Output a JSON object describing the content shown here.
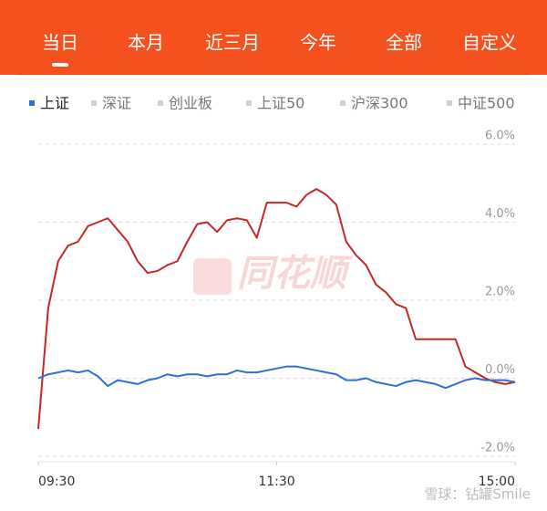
{
  "tabs": [
    "当日",
    "本月",
    "近三月",
    "今年",
    "全部",
    "自定义"
  ],
  "active_tab": 0,
  "chart_data": {
    "type": "line",
    "legend": [
      {
        "name": "上证",
        "color": "#2f6fd6",
        "active": true
      },
      {
        "name": "深证",
        "color": "#d0d0d0",
        "active": false
      },
      {
        "name": "创业板",
        "color": "#d0d0d0",
        "active": false
      },
      {
        "name": "上证50",
        "color": "#d0d0d0",
        "active": false
      },
      {
        "name": "沪深300",
        "color": "#d0d0d0",
        "active": false
      },
      {
        "name": "中证500",
        "color": "#d0d0d0",
        "active": false
      }
    ],
    "x": [
      0,
      5,
      10,
      15,
      20,
      25,
      30,
      35,
      40,
      45,
      50,
      55,
      60,
      65,
      70,
      75,
      80,
      85,
      90,
      95,
      100,
      105,
      110,
      115,
      120,
      125,
      130,
      135,
      140,
      145,
      150,
      155,
      160,
      165,
      170,
      175,
      180,
      185,
      190,
      195,
      200,
      205,
      210,
      215,
      220,
      225,
      230,
      235,
      240
    ],
    "series": [
      {
        "color": "#c62828",
        "values": [
          -1.3,
          1.8,
          3.0,
          3.4,
          3.5,
          3.9,
          4.0,
          4.1,
          3.8,
          3.5,
          3.0,
          2.7,
          2.75,
          2.9,
          3.0,
          3.5,
          3.95,
          4.0,
          3.75,
          4.05,
          4.1,
          4.05,
          3.6,
          4.5,
          4.5,
          4.5,
          4.4,
          4.7,
          4.85,
          4.7,
          4.45,
          3.5,
          3.15,
          2.9,
          2.4,
          2.2,
          1.9,
          1.8,
          1.0,
          1.0,
          1.0,
          1.0,
          1.0,
          0.3,
          0.15,
          0.0,
          -0.1,
          -0.15,
          -0.1
        ]
      },
      {
        "color": "#2f6fd6",
        "values": [
          0.0,
          0.1,
          0.15,
          0.2,
          0.15,
          0.2,
          0.05,
          -0.2,
          -0.05,
          -0.1,
          -0.15,
          -0.05,
          0.0,
          0.1,
          0.05,
          0.1,
          0.1,
          0.05,
          0.1,
          0.1,
          0.2,
          0.15,
          0.15,
          0.2,
          0.25,
          0.3,
          0.3,
          0.25,
          0.2,
          0.15,
          0.1,
          -0.05,
          -0.05,
          0.0,
          -0.1,
          -0.15,
          -0.2,
          -0.1,
          -0.05,
          -0.1,
          -0.15,
          -0.25,
          -0.15,
          -0.05,
          0.0,
          -0.05,
          -0.05,
          -0.05,
          -0.1
        ]
      }
    ],
    "xlim": [
      0,
      240
    ],
    "xticks": [
      {
        "value": 0,
        "label": "09:30"
      },
      {
        "value": 120,
        "label": "11:30"
      },
      {
        "value": 240,
        "label": "15:00"
      }
    ],
    "ylim": [
      -2,
      6
    ],
    "yticks": [
      {
        "value": -2,
        "label": "-2.0%"
      },
      {
        "value": 0,
        "label": "0.0%"
      },
      {
        "value": 2,
        "label": "2.0%"
      },
      {
        "value": 4,
        "label": "4.0%"
      },
      {
        "value": 6,
        "label": "6.0%"
      }
    ],
    "grid": true,
    "watermark": "同花顺"
  },
  "footer_watermark": "雪球：钻罐Smile"
}
